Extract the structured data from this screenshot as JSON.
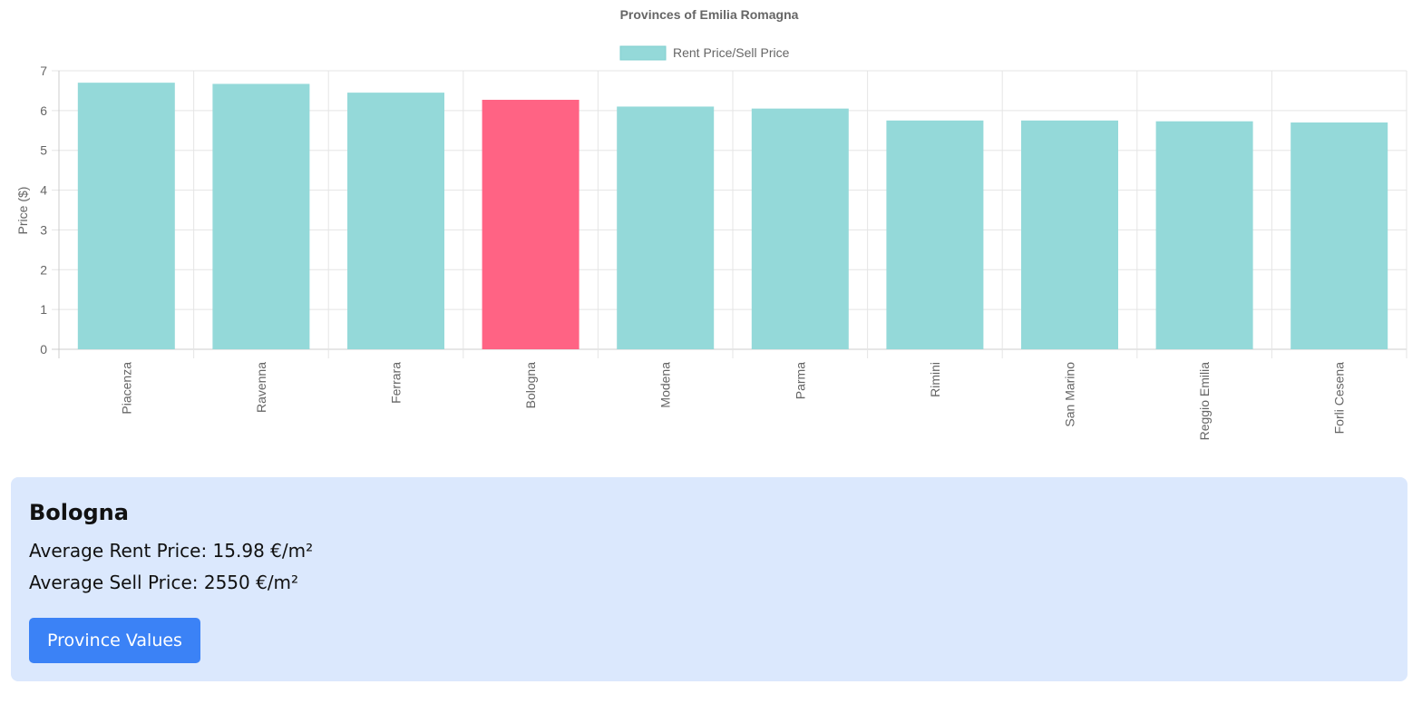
{
  "chart_data": {
    "type": "bar",
    "title": "Provinces of Emilia Romagna",
    "ylabel": "Price ($)",
    "xlabel": "",
    "categories": [
      "Piacenza",
      "Ravenna",
      "Ferrara",
      "Bologna",
      "Modena",
      "Parma",
      "Rimini",
      "San Marino",
      "Reggio Emilia",
      "Forli Cesena"
    ],
    "series": [
      {
        "name": "Rent Price/Sell Price",
        "values": [
          6.7,
          6.67,
          6.45,
          6.27,
          6.1,
          6.05,
          5.75,
          5.75,
          5.73,
          5.7
        ]
      }
    ],
    "highlight_index": 3,
    "ylim": [
      0,
      7
    ],
    "yticks": [
      "0",
      "1",
      "2",
      "3",
      "4",
      "5",
      "6",
      "7"
    ],
    "grid": true,
    "legend_position": "top",
    "colors": {
      "bar": "#94d9d9",
      "highlight": "#ff6384",
      "grid": "#e5e5e5",
      "axis_text": "#666666"
    }
  },
  "info": {
    "title": "Bologna",
    "rent_line": "Average Rent Price: 15.98 €/m²",
    "sell_line": "Average Sell Price: 2550 €/m²",
    "button_label": "Province Values"
  },
  "colors": {
    "panel_bg": "#dbe8fd",
    "button_bg": "#3b82f6"
  }
}
